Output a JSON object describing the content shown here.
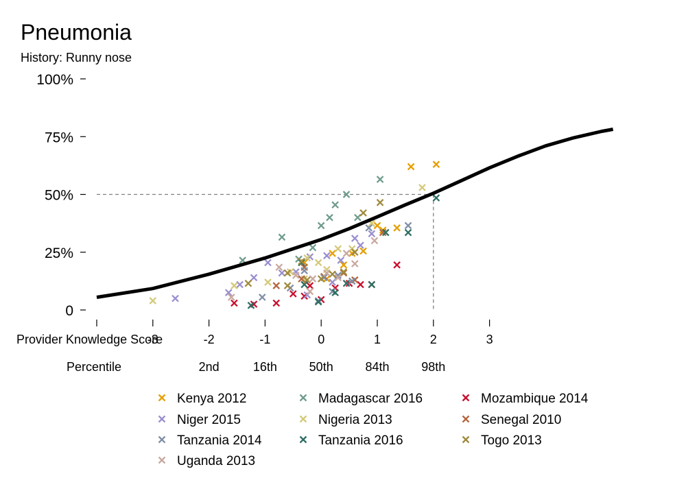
{
  "chart_data": {
    "type": "scatter",
    "title": "Pneumonia",
    "subtitle": "History: Runny nose",
    "xlabel": "Provider Knowledge Score",
    "x_ticks": [
      -4,
      -3,
      -2,
      -1,
      0,
      1,
      2,
      3
    ],
    "x_tick_labels": [
      "",
      "-3",
      "-2",
      "-1",
      "0",
      "1",
      "2",
      "3"
    ],
    "percentile_label": "Percentile",
    "percentile_ticks": [
      {
        "x": -2,
        "label": "2nd"
      },
      {
        "x": -1,
        "label": "16th"
      },
      {
        "x": 0,
        "label": "50th"
      },
      {
        "x": 1,
        "label": "84th"
      },
      {
        "x": 2,
        "label": "98th"
      }
    ],
    "y_ticks": [
      0,
      25,
      50,
      75,
      100
    ],
    "y_tick_labels": [
      "0",
      "25%",
      "50%",
      "75%",
      "100%"
    ],
    "xlim": [
      -4,
      5.2
    ],
    "ylim": [
      0,
      100
    ],
    "grid": false,
    "legend_position": "bottom",
    "reference_lines": {
      "x": 2,
      "y": 50
    },
    "curve": {
      "color": "#000000",
      "points": [
        [
          -4,
          5.5
        ],
        [
          -3,
          9.3
        ],
        [
          -2,
          15.5
        ],
        [
          -1,
          22.5
        ],
        [
          0,
          30.5
        ],
        [
          0.5,
          35.2
        ],
        [
          1,
          40.3
        ],
        [
          1.5,
          45.5
        ],
        [
          2,
          50.5
        ],
        [
          2.5,
          56.0
        ],
        [
          3,
          61.5
        ],
        [
          3.5,
          66.5
        ],
        [
          4,
          71.0
        ],
        [
          4.5,
          74.5
        ],
        [
          5.0,
          77.3
        ],
        [
          5.2,
          78.2
        ]
      ]
    },
    "series": [
      {
        "name": "Kenya 2012",
        "color": "#E69F00",
        "points": [
          [
            1.6,
            62
          ],
          [
            2.05,
            63
          ],
          [
            1.35,
            35.5
          ],
          [
            1.1,
            34.5
          ],
          [
            0.75,
            25.5
          ],
          [
            0.55,
            24.5
          ],
          [
            0.4,
            19.5
          ],
          [
            0.2,
            24.5
          ],
          [
            -0.3,
            20.5
          ],
          [
            0.1,
            13.5
          ],
          [
            1.0,
            36.5
          ]
        ]
      },
      {
        "name": "Madagascar 2016",
        "color": "#6F9C8C",
        "points": [
          [
            1.05,
            56.5
          ],
          [
            0.45,
            50
          ],
          [
            0.25,
            45.5
          ],
          [
            0.15,
            40
          ],
          [
            0.0,
            36.5
          ],
          [
            0.65,
            40
          ],
          [
            -0.7,
            31.5
          ],
          [
            -1.4,
            21.5
          ],
          [
            -0.15,
            27
          ],
          [
            -0.4,
            22
          ]
        ]
      },
      {
        "name": "Mozambique 2014",
        "color": "#C8102E",
        "points": [
          [
            1.35,
            19.5
          ],
          [
            0.9,
            11
          ],
          [
            0.7,
            11
          ],
          [
            0.5,
            11.5
          ],
          [
            0.25,
            9.5
          ],
          [
            0.0,
            4.5
          ],
          [
            -0.2,
            10.5
          ],
          [
            -0.5,
            7
          ],
          [
            -0.8,
            3
          ],
          [
            -1.2,
            2.5
          ],
          [
            -1.55,
            3
          ],
          [
            -0.3,
            6
          ]
        ]
      },
      {
        "name": "Niger 2015",
        "color": "#9A8FCF",
        "points": [
          [
            -2.6,
            5
          ],
          [
            -1.65,
            7.5
          ],
          [
            -1.45,
            11
          ],
          [
            -1.2,
            14
          ],
          [
            -0.95,
            20.5
          ],
          [
            -0.7,
            16
          ],
          [
            -0.45,
            16.5
          ],
          [
            -0.2,
            23
          ],
          [
            0.1,
            23.5
          ],
          [
            0.35,
            21.5
          ],
          [
            0.6,
            31
          ],
          [
            0.7,
            28
          ],
          [
            0.9,
            33
          ],
          [
            -0.25,
            6.5
          ],
          [
            0.2,
            12
          ]
        ]
      },
      {
        "name": "Nigeria 2013",
        "color": "#D4C97A",
        "points": [
          [
            -3.0,
            4
          ],
          [
            -1.55,
            10.5
          ],
          [
            -0.95,
            12
          ],
          [
            -0.55,
            16.5
          ],
          [
            -0.25,
            22.5
          ],
          [
            -0.05,
            20.5
          ],
          [
            0.3,
            26.5
          ],
          [
            0.55,
            26.5
          ],
          [
            0.9,
            37.5
          ],
          [
            1.8,
            53
          ],
          [
            -0.3,
            13.5
          ],
          [
            0.1,
            17.5
          ]
        ]
      },
      {
        "name": "Senegal 2010",
        "color": "#B5653C",
        "points": [
          [
            -0.8,
            10.5
          ],
          [
            -0.35,
            13.5
          ],
          [
            0.05,
            14.5
          ],
          [
            0.4,
            16
          ],
          [
            0.6,
            13
          ],
          [
            1.1,
            33.5
          ],
          [
            -0.3,
            18.5
          ]
        ]
      },
      {
        "name": "Tanzania 2014",
        "color": "#7F8FA6",
        "points": [
          [
            -1.05,
            5.5
          ],
          [
            -0.55,
            9.5
          ],
          [
            -0.3,
            17
          ],
          [
            0.05,
            14
          ],
          [
            0.3,
            15
          ],
          [
            0.55,
            12.5
          ],
          [
            0.85,
            35.5
          ],
          [
            1.55,
            36.5
          ],
          [
            -0.05,
            4
          ],
          [
            0.2,
            8
          ]
        ]
      },
      {
        "name": "Tanzania 2016",
        "color": "#2D6E63",
        "points": [
          [
            2.05,
            48.5
          ],
          [
            1.55,
            33.5
          ],
          [
            1.15,
            33.5
          ],
          [
            0.9,
            11
          ],
          [
            0.45,
            11.5
          ],
          [
            0.25,
            7.5
          ],
          [
            -0.05,
            3.5
          ],
          [
            -0.3,
            11
          ],
          [
            -1.25,
            2
          ],
          [
            -0.35,
            20.5
          ]
        ]
      },
      {
        "name": "Togo 2013",
        "color": "#A08A3C",
        "points": [
          [
            1.05,
            46.5
          ],
          [
            0.75,
            42
          ],
          [
            0.6,
            25
          ],
          [
            0.4,
            16.5
          ],
          [
            0.2,
            15.5
          ],
          [
            -0.25,
            13
          ],
          [
            -0.6,
            16
          ],
          [
            -0.6,
            10.5
          ],
          [
            -1.3,
            11.5
          ],
          [
            0.0,
            13.5
          ],
          [
            -0.35,
            21
          ]
        ]
      },
      {
        "name": "Uganda 2013",
        "color": "#C9A9A0",
        "points": [
          [
            -1.6,
            5.5
          ],
          [
            -0.75,
            18.5
          ],
          [
            -0.45,
            15
          ],
          [
            -0.15,
            13.5
          ],
          [
            0.1,
            16
          ],
          [
            0.45,
            24.5
          ],
          [
            0.6,
            20
          ],
          [
            0.95,
            30
          ],
          [
            0.3,
            14
          ],
          [
            -0.2,
            8
          ]
        ]
      }
    ]
  }
}
